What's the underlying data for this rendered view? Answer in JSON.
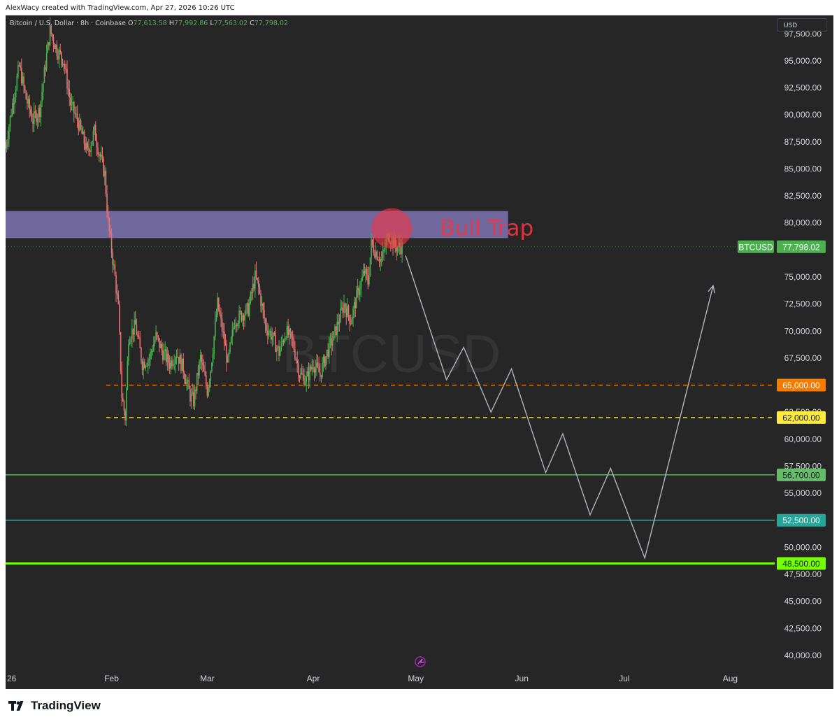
{
  "header": {
    "credit": "AlexWacy created with TradingView.com, Apr 27, 2026 10:26 UTC",
    "symbol_label": "Bitcoin / U.S. Dollar · 8h · Coinbase",
    "open_label": "O",
    "open_value": "77,613.58",
    "high_label": "H",
    "high_value": "77,992.86",
    "low_label": "L",
    "low_value": "77,563.02",
    "close_label": "C",
    "close_value": "77,798.02",
    "currency": "USD"
  },
  "watermark": "BTCUSD",
  "footer": {
    "brand": "TradingView"
  },
  "colors": {
    "background": "#262626",
    "candle_up": "#4caf50",
    "candle_down": "#e57373",
    "zone": "#8b7fc7",
    "circle": "#f23645",
    "label_orange": "#f57c00",
    "label_yellow": "#ffeb3b",
    "support_1": "#66bb6a",
    "support_2": "#26a69a",
    "support_3": "#76ff03",
    "projection": "#b2b5be"
  },
  "chart_data": {
    "type": "candlestick",
    "symbol": "BTCUSD",
    "timeframe": "8h",
    "price_axis": {
      "ylim": [
        38700,
        99200
      ],
      "ticks": [
        97500,
        95000,
        92500,
        90000,
        87500,
        85000,
        82500,
        80000,
        75000,
        72500,
        70000,
        67500,
        60000,
        55000,
        50000,
        45000,
        42500,
        40000
      ],
      "tick_labels": [
        "97,500.00",
        "95,000.00",
        "92,500.00",
        "90,000.00",
        "87,500.00",
        "85,000.00",
        "82,500.00",
        "80,000.00",
        "75,000.00",
        "72,500.00",
        "70,000.00",
        "67,500.00",
        "60,000.00",
        "55,000.00",
        "50,000.00",
        "45,000.00",
        "42,500.00",
        "40,000.00"
      ],
      "partially_hidden_ticks": [
        62500,
        57500,
        47500
      ],
      "partially_hidden_labels": [
        "62,500.00",
        "57,500.00",
        "47,500.00"
      ]
    },
    "time_axis": {
      "start": "2026-01-01",
      "end": "2026-08-14",
      "ticks": [
        "2026-01-01",
        "2026-02-01",
        "2026-03-01",
        "2026-04-01",
        "2026-05-01",
        "2026-06-01",
        "2026-07-01",
        "2026-08-01"
      ],
      "tick_labels": [
        "26",
        "Feb",
        "Mar",
        "Apr",
        "May",
        "Jun",
        "Jul",
        "Aug"
      ]
    },
    "price_path": [
      [
        "2026-01-01",
        87000
      ],
      [
        "2026-01-03",
        91000
      ],
      [
        "2026-01-05",
        94500
      ],
      [
        "2026-01-07",
        91500
      ],
      [
        "2026-01-09",
        89500
      ],
      [
        "2026-01-11",
        90500
      ],
      [
        "2026-01-13",
        95500
      ],
      [
        "2026-01-14",
        97800
      ],
      [
        "2026-01-16",
        96000
      ],
      [
        "2026-01-18",
        95000
      ],
      [
        "2026-01-20",
        91000
      ],
      [
        "2026-01-22",
        89500
      ],
      [
        "2026-01-24",
        87500
      ],
      [
        "2026-01-25",
        86500
      ],
      [
        "2026-01-27",
        88500
      ],
      [
        "2026-01-28",
        87000
      ],
      [
        "2026-01-30",
        84500
      ],
      [
        "2026-01-31",
        80000
      ],
      [
        "2026-02-02",
        75000
      ],
      [
        "2026-02-03",
        72000
      ],
      [
        "2026-02-04",
        64000
      ],
      [
        "2026-02-05",
        62000
      ],
      [
        "2026-02-06",
        69500
      ],
      [
        "2026-02-08",
        70500
      ],
      [
        "2026-02-10",
        67000
      ],
      [
        "2026-02-12",
        67500
      ],
      [
        "2026-02-14",
        69500
      ],
      [
        "2026-02-16",
        68000
      ],
      [
        "2026-02-18",
        67000
      ],
      [
        "2026-02-20",
        68000
      ],
      [
        "2026-02-22",
        66500
      ],
      [
        "2026-02-24",
        64000
      ],
      [
        "2026-02-25",
        63500
      ],
      [
        "2026-02-27",
        67500
      ],
      [
        "2026-03-01",
        64500
      ],
      [
        "2026-03-02",
        66500
      ],
      [
        "2026-03-04",
        72500
      ],
      [
        "2026-03-06",
        69000
      ],
      [
        "2026-03-07",
        67000
      ],
      [
        "2026-03-09",
        71000
      ],
      [
        "2026-03-11",
        71500
      ],
      [
        "2026-03-13",
        72000
      ],
      [
        "2026-03-15",
        75000
      ],
      [
        "2026-03-16",
        74000
      ],
      [
        "2026-03-18",
        70500
      ],
      [
        "2026-03-20",
        69500
      ],
      [
        "2026-03-22",
        68000
      ],
      [
        "2026-03-24",
        70000
      ],
      [
        "2026-03-26",
        69000
      ],
      [
        "2026-03-28",
        66000
      ],
      [
        "2026-03-30",
        65500
      ],
      [
        "2026-04-01",
        67000
      ],
      [
        "2026-04-03",
        66000
      ],
      [
        "2026-04-05",
        68000
      ],
      [
        "2026-04-07",
        69500
      ],
      [
        "2026-04-09",
        71500
      ],
      [
        "2026-04-10",
        72500
      ],
      [
        "2026-04-12",
        71000
      ],
      [
        "2026-04-14",
        73500
      ],
      [
        "2026-04-16",
        75500
      ],
      [
        "2026-04-17",
        74500
      ],
      [
        "2026-04-18",
        78000
      ],
      [
        "2026-04-20",
        77000
      ],
      [
        "2026-04-21",
        76500
      ],
      [
        "2026-04-23",
        79000
      ],
      [
        "2026-04-25",
        77800
      ],
      [
        "2026-04-27",
        77798
      ]
    ],
    "levels": [
      {
        "price": 77798.02,
        "label": "77,798.02",
        "tag": "BTCUSD",
        "style": "dotted"
      },
      {
        "price": 65000,
        "label": "65,000.00",
        "style": "dashed"
      },
      {
        "price": 62000,
        "label": "62,000.00",
        "style": "dashed"
      },
      {
        "price": 56700,
        "label": "56,700.00",
        "style": "solid"
      },
      {
        "price": 52500,
        "label": "52,500.00",
        "style": "solid"
      },
      {
        "price": 48500,
        "label": "48,500.00",
        "style": "solid"
      }
    ],
    "zone": {
      "price_low": 78600,
      "price_high": 81100,
      "x_start": "2026-01-01",
      "x_end": "2026-05-28"
    },
    "annotation": {
      "text": "Bull Trap",
      "x": "2026-04-24",
      "price": 79500
    },
    "projection": [
      [
        "2026-04-28",
        77000
      ],
      [
        "2026-05-10",
        65500
      ],
      [
        "2026-05-15",
        68500
      ],
      [
        "2026-05-23",
        62500
      ],
      [
        "2026-05-29",
        66500
      ],
      [
        "2026-06-08",
        56900
      ],
      [
        "2026-06-13",
        60500
      ],
      [
        "2026-06-21",
        53000
      ],
      [
        "2026-06-27",
        57300
      ],
      [
        "2026-07-07",
        49000
      ],
      [
        "2026-07-27",
        74200
      ]
    ]
  }
}
